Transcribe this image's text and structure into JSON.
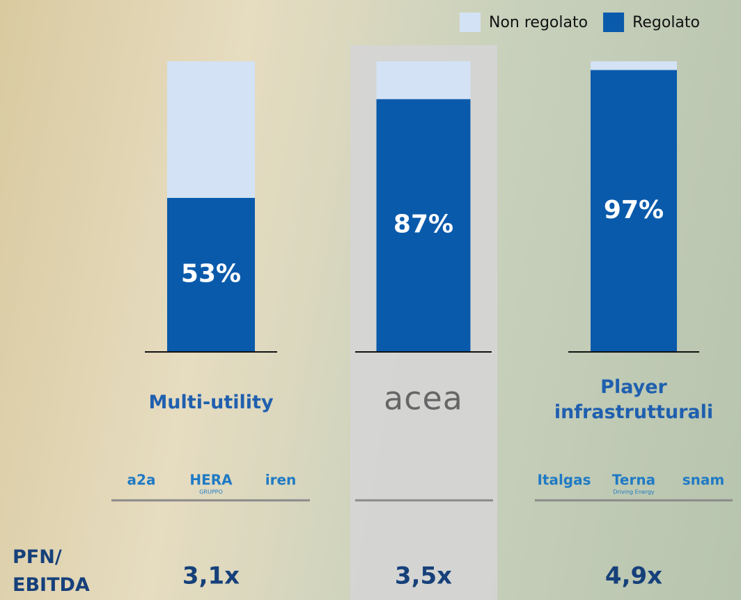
{
  "chart_data": {
    "type": "bar",
    "stacked": true,
    "categories": [
      "Multi-utility",
      "acea",
      "Player infrastrutturali"
    ],
    "series": [
      {
        "name": "Non regolato",
        "color": "#d3e2f5",
        "values": [
          47,
          13,
          3
        ]
      },
      {
        "name": "Regolato",
        "color": "#0a5aab",
        "values": [
          53,
          87,
          97
        ],
        "value_labels": [
          "53%",
          "87%",
          "97%"
        ]
      }
    ],
    "ylim": [
      0,
      100
    ],
    "legend": "top-right",
    "logos": [
      [
        {
          "name": "a2a"
        },
        {
          "name": "HERA",
          "sub": "GRUPPO"
        },
        {
          "name": "iren"
        }
      ],
      [],
      [
        {
          "name": "Italgas"
        },
        {
          "name": "Terna",
          "sub": "Driving Energy"
        },
        {
          "name": "snam"
        }
      ]
    ],
    "metric_label": "PFN/ EBITDA",
    "metric_values": [
      "3,1x",
      "3,5x",
      "4,9x"
    ]
  }
}
